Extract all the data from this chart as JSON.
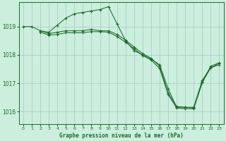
{
  "bg_color": "#cceedd",
  "grid_color": "#aacccc",
  "line_color": "#1a6b2a",
  "marker_color": "#1a6b2a",
  "title": "Graphe pression niveau de la mer (hPa)",
  "title_color": "#1a6b2a",
  "xlabel_ticks": [
    0,
    1,
    2,
    3,
    4,
    5,
    6,
    7,
    8,
    9,
    10,
    11,
    12,
    13,
    14,
    15,
    16,
    17,
    18,
    19,
    20,
    21,
    22,
    23
  ],
  "yticks": [
    1016,
    1017,
    1018,
    1019
  ],
  "ylim": [
    1015.55,
    1019.85
  ],
  "xlim": [
    -0.5,
    23.5
  ],
  "series": [
    {
      "x": [
        0,
        1,
        2,
        3,
        4,
        5,
        6,
        7,
        8,
        9,
        10,
        11,
        12,
        13,
        14,
        15,
        16,
        17,
        18,
        19,
        20,
        21,
        22,
        23
      ],
      "y": [
        1019.0,
        1019.0,
        1018.85,
        1018.8,
        1019.05,
        1019.3,
        1019.45,
        1019.5,
        1019.55,
        1019.6,
        1019.7,
        1019.1,
        1018.5,
        1018.15,
        1018.0,
        1017.85,
        1017.65,
        1016.8,
        1016.15,
        1016.15,
        1016.15,
        1017.1,
        1017.55,
        1017.65
      ]
    },
    {
      "x": [
        2,
        3,
        4,
        5,
        6,
        7,
        8,
        9,
        10,
        11,
        12,
        13,
        14,
        15,
        16,
        17,
        18,
        19,
        20,
        21,
        22,
        23
      ],
      "y": [
        1018.85,
        1018.75,
        1018.8,
        1018.85,
        1018.85,
        1018.85,
        1018.9,
        1018.85,
        1018.85,
        1018.72,
        1018.52,
        1018.28,
        1018.05,
        1017.88,
        1017.6,
        1016.65,
        1016.18,
        1016.15,
        1016.12,
        1017.05,
        1017.6,
        1017.72
      ]
    },
    {
      "x": [
        2,
        3,
        4,
        5,
        6,
        7,
        8,
        9,
        10,
        11,
        12,
        13,
        14,
        15,
        16,
        17,
        18,
        19,
        20,
        21,
        22,
        23
      ],
      "y": [
        1018.8,
        1018.7,
        1018.72,
        1018.78,
        1018.78,
        1018.78,
        1018.82,
        1018.82,
        1018.8,
        1018.65,
        1018.45,
        1018.22,
        1017.98,
        1017.82,
        1017.52,
        1016.6,
        1016.12,
        1016.1,
        1016.1,
        1017.02,
        1017.55,
        1017.7
      ]
    }
  ]
}
